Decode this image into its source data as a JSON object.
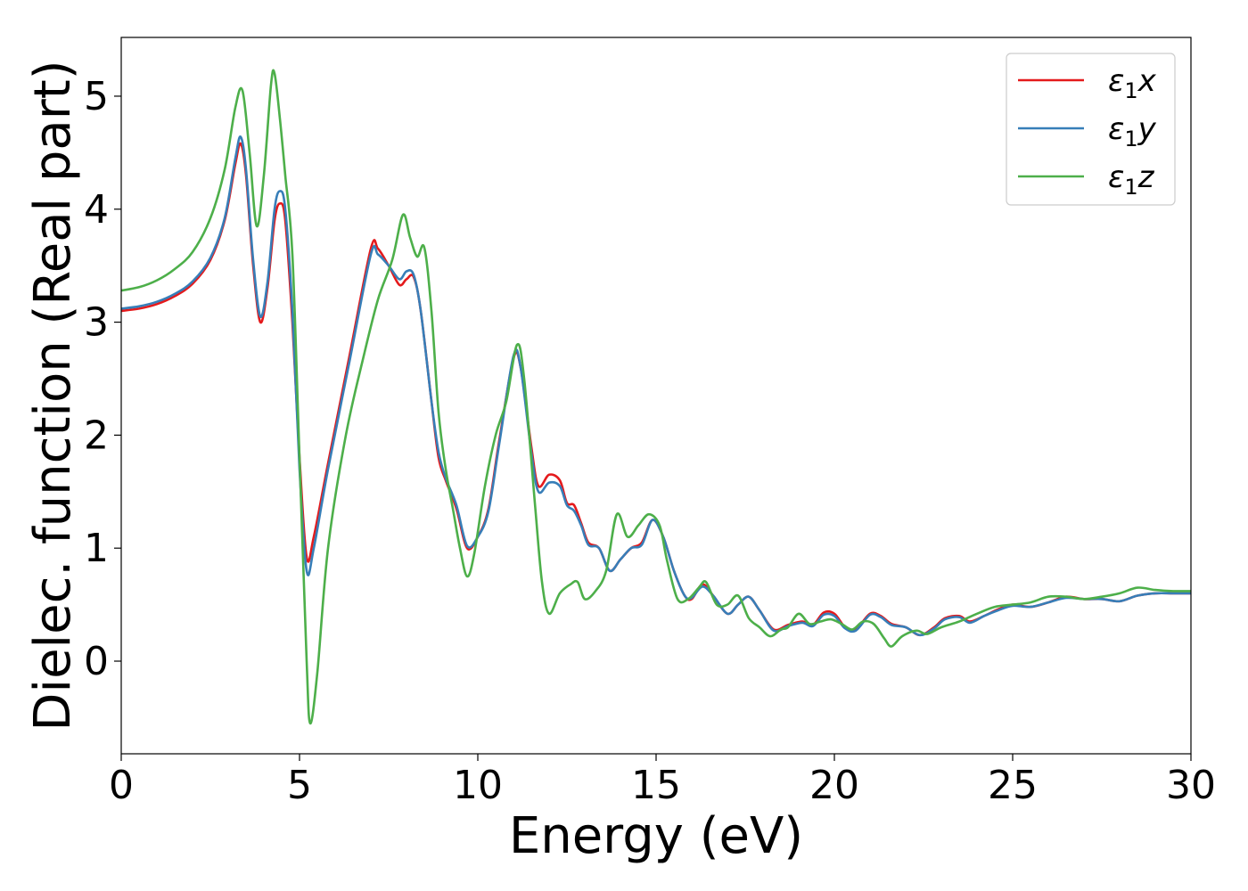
{
  "chart_data": {
    "type": "line",
    "title": "",
    "xlabel": "Energy (eV)",
    "ylabel": "Dielec. function (Real part)",
    "xlim": [
      0,
      30
    ],
    "ylim": [
      -0.82,
      5.52
    ],
    "xticks": [
      0,
      5,
      10,
      15,
      20,
      25,
      30
    ],
    "xtick_labels": [
      "0",
      "5",
      "10",
      "15",
      "20",
      "25",
      "30"
    ],
    "yticks": [
      0,
      1,
      2,
      3,
      4,
      5
    ],
    "ytick_labels": [
      "0",
      "1",
      "2",
      "3",
      "4",
      "5"
    ],
    "grid": false,
    "legend_position": "top-right",
    "series": [
      {
        "name": "ε1x",
        "legend_base": "ε",
        "legend_sub": "1",
        "legend_suffix": "x",
        "color": "#e41a1c",
        "points": [
          [
            0,
            3.1
          ],
          [
            0.5,
            3.12
          ],
          [
            1,
            3.16
          ],
          [
            1.5,
            3.23
          ],
          [
            2,
            3.34
          ],
          [
            2.5,
            3.55
          ],
          [
            2.9,
            3.9
          ],
          [
            3.2,
            4.4
          ],
          [
            3.35,
            4.58
          ],
          [
            3.5,
            4.3
          ],
          [
            3.7,
            3.5
          ],
          [
            3.9,
            3.0
          ],
          [
            4.1,
            3.3
          ],
          [
            4.3,
            3.9
          ],
          [
            4.45,
            4.05
          ],
          [
            4.6,
            3.9
          ],
          [
            4.8,
            3.0
          ],
          [
            5.0,
            1.8
          ],
          [
            5.2,
            0.92
          ],
          [
            5.4,
            1.1
          ],
          [
            5.8,
            1.75
          ],
          [
            6.4,
            2.7
          ],
          [
            7.0,
            3.65
          ],
          [
            7.2,
            3.65
          ],
          [
            7.5,
            3.5
          ],
          [
            7.8,
            3.33
          ],
          [
            8.0,
            3.38
          ],
          [
            8.2,
            3.4
          ],
          [
            8.4,
            3.1
          ],
          [
            8.7,
            2.3
          ],
          [
            8.9,
            1.8
          ],
          [
            9.1,
            1.6
          ],
          [
            9.4,
            1.35
          ],
          [
            9.7,
            1.0
          ],
          [
            10.0,
            1.1
          ],
          [
            10.3,
            1.35
          ],
          [
            10.6,
            1.95
          ],
          [
            11.0,
            2.68
          ],
          [
            11.2,
            2.6
          ],
          [
            11.5,
            1.9
          ],
          [
            11.7,
            1.55
          ],
          [
            12.0,
            1.65
          ],
          [
            12.3,
            1.6
          ],
          [
            12.5,
            1.4
          ],
          [
            12.7,
            1.38
          ],
          [
            12.9,
            1.22
          ],
          [
            13.1,
            1.05
          ],
          [
            13.4,
            1.0
          ],
          [
            13.7,
            0.8
          ],
          [
            14.0,
            0.9
          ],
          [
            14.3,
            1.0
          ],
          [
            14.6,
            1.05
          ],
          [
            14.9,
            1.25
          ],
          [
            15.2,
            1.1
          ],
          [
            15.5,
            0.8
          ],
          [
            15.8,
            0.58
          ],
          [
            16.0,
            0.55
          ],
          [
            16.3,
            0.68
          ],
          [
            16.6,
            0.58
          ],
          [
            17.0,
            0.42
          ],
          [
            17.3,
            0.5
          ],
          [
            17.6,
            0.57
          ],
          [
            17.9,
            0.45
          ],
          [
            18.3,
            0.28
          ],
          [
            18.7,
            0.32
          ],
          [
            19.1,
            0.35
          ],
          [
            19.4,
            0.32
          ],
          [
            19.7,
            0.43
          ],
          [
            20.0,
            0.42
          ],
          [
            20.3,
            0.3
          ],
          [
            20.6,
            0.28
          ],
          [
            21.0,
            0.42
          ],
          [
            21.3,
            0.4
          ],
          [
            21.6,
            0.33
          ],
          [
            22.0,
            0.3
          ],
          [
            22.4,
            0.23
          ],
          [
            22.8,
            0.3
          ],
          [
            23.1,
            0.38
          ],
          [
            23.5,
            0.4
          ],
          [
            23.8,
            0.35
          ],
          [
            24.2,
            0.4
          ],
          [
            24.6,
            0.46
          ],
          [
            25.0,
            0.5
          ],
          [
            25.5,
            0.48
          ],
          [
            26.0,
            0.52
          ],
          [
            26.5,
            0.57
          ],
          [
            27.0,
            0.55
          ],
          [
            27.5,
            0.55
          ],
          [
            28.0,
            0.53
          ],
          [
            28.5,
            0.58
          ],
          [
            29.0,
            0.6
          ],
          [
            29.5,
            0.6
          ],
          [
            30.0,
            0.6
          ]
        ]
      },
      {
        "name": "ε1y",
        "legend_base": "ε",
        "legend_sub": "1",
        "legend_suffix": "y",
        "color": "#377eb8",
        "points": [
          [
            0,
            3.12
          ],
          [
            0.5,
            3.14
          ],
          [
            1,
            3.18
          ],
          [
            1.5,
            3.25
          ],
          [
            2,
            3.36
          ],
          [
            2.5,
            3.57
          ],
          [
            2.9,
            3.92
          ],
          [
            3.2,
            4.45
          ],
          [
            3.35,
            4.64
          ],
          [
            3.5,
            4.35
          ],
          [
            3.7,
            3.55
          ],
          [
            3.9,
            3.05
          ],
          [
            4.1,
            3.35
          ],
          [
            4.3,
            4.0
          ],
          [
            4.45,
            4.16
          ],
          [
            4.6,
            4.0
          ],
          [
            4.8,
            3.1
          ],
          [
            5.0,
            1.7
          ],
          [
            5.2,
            0.8
          ],
          [
            5.4,
            1.0
          ],
          [
            5.8,
            1.7
          ],
          [
            6.4,
            2.65
          ],
          [
            7.0,
            3.6
          ],
          [
            7.2,
            3.6
          ],
          [
            7.5,
            3.5
          ],
          [
            7.8,
            3.38
          ],
          [
            8.0,
            3.45
          ],
          [
            8.2,
            3.42
          ],
          [
            8.4,
            3.1
          ],
          [
            8.7,
            2.3
          ],
          [
            8.9,
            1.85
          ],
          [
            9.1,
            1.62
          ],
          [
            9.4,
            1.38
          ],
          [
            9.7,
            1.02
          ],
          [
            10.0,
            1.1
          ],
          [
            10.3,
            1.33
          ],
          [
            10.6,
            1.92
          ],
          [
            11.0,
            2.7
          ],
          [
            11.2,
            2.6
          ],
          [
            11.5,
            1.85
          ],
          [
            11.7,
            1.5
          ],
          [
            12.0,
            1.58
          ],
          [
            12.3,
            1.55
          ],
          [
            12.5,
            1.38
          ],
          [
            12.7,
            1.33
          ],
          [
            12.9,
            1.2
          ],
          [
            13.1,
            1.03
          ],
          [
            13.4,
            1.0
          ],
          [
            13.7,
            0.8
          ],
          [
            14.0,
            0.9
          ],
          [
            14.3,
            1.0
          ],
          [
            14.6,
            1.03
          ],
          [
            14.9,
            1.25
          ],
          [
            15.2,
            1.1
          ],
          [
            15.5,
            0.8
          ],
          [
            15.8,
            0.58
          ],
          [
            16.0,
            0.56
          ],
          [
            16.3,
            0.66
          ],
          [
            16.6,
            0.58
          ],
          [
            17.0,
            0.42
          ],
          [
            17.3,
            0.5
          ],
          [
            17.6,
            0.57
          ],
          [
            17.9,
            0.45
          ],
          [
            18.3,
            0.27
          ],
          [
            18.7,
            0.31
          ],
          [
            19.1,
            0.34
          ],
          [
            19.4,
            0.31
          ],
          [
            19.7,
            0.41
          ],
          [
            20.0,
            0.4
          ],
          [
            20.3,
            0.29
          ],
          [
            20.6,
            0.27
          ],
          [
            21.0,
            0.41
          ],
          [
            21.3,
            0.39
          ],
          [
            21.6,
            0.32
          ],
          [
            22.0,
            0.3
          ],
          [
            22.4,
            0.23
          ],
          [
            22.8,
            0.29
          ],
          [
            23.1,
            0.37
          ],
          [
            23.5,
            0.39
          ],
          [
            23.8,
            0.34
          ],
          [
            24.2,
            0.4
          ],
          [
            24.6,
            0.45
          ],
          [
            25.0,
            0.49
          ],
          [
            25.5,
            0.48
          ],
          [
            26.0,
            0.52
          ],
          [
            26.5,
            0.56
          ],
          [
            27.0,
            0.55
          ],
          [
            27.5,
            0.55
          ],
          [
            28.0,
            0.53
          ],
          [
            28.5,
            0.58
          ],
          [
            29.0,
            0.6
          ],
          [
            29.5,
            0.6
          ],
          [
            30.0,
            0.6
          ]
        ]
      },
      {
        "name": "ε1z",
        "legend_base": "ε",
        "legend_sub": "1",
        "legend_suffix": "z",
        "color": "#4daf4a",
        "points": [
          [
            0,
            3.28
          ],
          [
            0.5,
            3.31
          ],
          [
            1,
            3.37
          ],
          [
            1.5,
            3.47
          ],
          [
            2,
            3.62
          ],
          [
            2.5,
            3.92
          ],
          [
            2.9,
            4.35
          ],
          [
            3.2,
            4.9
          ],
          [
            3.4,
            5.05
          ],
          [
            3.6,
            4.5
          ],
          [
            3.8,
            3.85
          ],
          [
            4.0,
            4.3
          ],
          [
            4.2,
            5.1
          ],
          [
            4.3,
            5.2
          ],
          [
            4.45,
            4.8
          ],
          [
            4.6,
            4.3
          ],
          [
            4.8,
            3.6
          ],
          [
            5.0,
            1.8
          ],
          [
            5.2,
            0.0
          ],
          [
            5.3,
            -0.55
          ],
          [
            5.5,
            -0.1
          ],
          [
            5.8,
            1.0
          ],
          [
            6.3,
            2.0
          ],
          [
            6.8,
            2.7
          ],
          [
            7.2,
            3.2
          ],
          [
            7.6,
            3.55
          ],
          [
            7.9,
            3.95
          ],
          [
            8.1,
            3.75
          ],
          [
            8.3,
            3.58
          ],
          [
            8.5,
            3.66
          ],
          [
            8.7,
            3.1
          ],
          [
            8.9,
            2.2
          ],
          [
            9.1,
            1.7
          ],
          [
            9.3,
            1.35
          ],
          [
            9.5,
            1.0
          ],
          [
            9.7,
            0.75
          ],
          [
            9.9,
            0.95
          ],
          [
            10.2,
            1.55
          ],
          [
            10.5,
            2.0
          ],
          [
            10.8,
            2.3
          ],
          [
            11.1,
            2.8
          ],
          [
            11.3,
            2.5
          ],
          [
            11.6,
            1.4
          ],
          [
            11.8,
            0.7
          ],
          [
            12.0,
            0.42
          ],
          [
            12.3,
            0.6
          ],
          [
            12.6,
            0.68
          ],
          [
            12.8,
            0.7
          ],
          [
            13.0,
            0.55
          ],
          [
            13.3,
            0.62
          ],
          [
            13.6,
            0.8
          ],
          [
            13.9,
            1.3
          ],
          [
            14.2,
            1.1
          ],
          [
            14.5,
            1.2
          ],
          [
            14.8,
            1.3
          ],
          [
            15.1,
            1.2
          ],
          [
            15.3,
            0.9
          ],
          [
            15.6,
            0.55
          ],
          [
            15.9,
            0.55
          ],
          [
            16.2,
            0.65
          ],
          [
            16.4,
            0.7
          ],
          [
            16.7,
            0.5
          ],
          [
            17.0,
            0.5
          ],
          [
            17.3,
            0.58
          ],
          [
            17.6,
            0.38
          ],
          [
            17.9,
            0.3
          ],
          [
            18.2,
            0.22
          ],
          [
            18.5,
            0.28
          ],
          [
            18.7,
            0.3
          ],
          [
            19.0,
            0.42
          ],
          [
            19.3,
            0.33
          ],
          [
            19.6,
            0.35
          ],
          [
            19.9,
            0.37
          ],
          [
            20.2,
            0.33
          ],
          [
            20.5,
            0.28
          ],
          [
            20.8,
            0.35
          ],
          [
            21.1,
            0.33
          ],
          [
            21.4,
            0.2
          ],
          [
            21.6,
            0.13
          ],
          [
            21.9,
            0.22
          ],
          [
            22.3,
            0.27
          ],
          [
            22.6,
            0.24
          ],
          [
            23.0,
            0.3
          ],
          [
            23.5,
            0.35
          ],
          [
            24.0,
            0.42
          ],
          [
            24.5,
            0.48
          ],
          [
            25.0,
            0.5
          ],
          [
            25.5,
            0.52
          ],
          [
            26.0,
            0.57
          ],
          [
            26.5,
            0.57
          ],
          [
            27.0,
            0.55
          ],
          [
            27.5,
            0.57
          ],
          [
            28.0,
            0.6
          ],
          [
            28.5,
            0.65
          ],
          [
            29.0,
            0.63
          ],
          [
            29.5,
            0.62
          ],
          [
            30.0,
            0.62
          ]
        ]
      }
    ]
  }
}
